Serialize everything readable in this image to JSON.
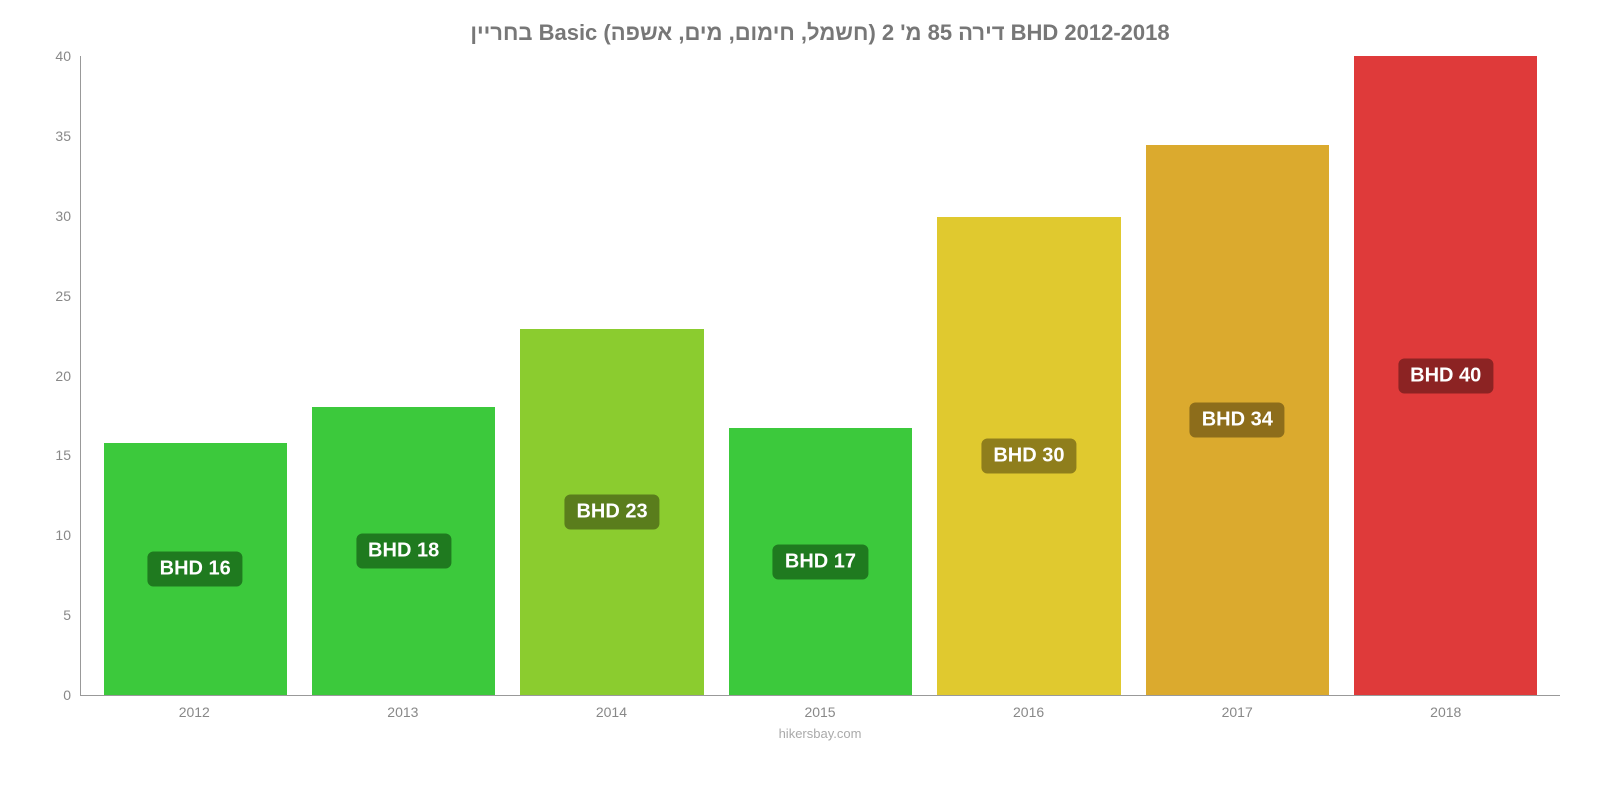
{
  "chart": {
    "type": "bar",
    "title": "בחריין Basic (חשמל, חימום, מים, אשפה) דירה 85 מ' 2 BHD 2012-2018",
    "title_fontsize": 22,
    "title_color": "#777777",
    "background_color": "#ffffff",
    "axis_color": "#999999",
    "tick_color": "#888888",
    "tick_fontsize": 14,
    "ylim": [
      0,
      40
    ],
    "yticks": [
      0,
      5,
      10,
      15,
      20,
      25,
      30,
      35,
      40
    ],
    "categories": [
      "2012",
      "2013",
      "2014",
      "2015",
      "2016",
      "2017",
      "2018"
    ],
    "values": [
      16,
      18,
      23,
      17,
      30,
      34,
      40
    ],
    "bar_heights_actual": [
      15.8,
      18.0,
      22.9,
      16.7,
      29.9,
      34.4,
      40.0
    ],
    "bar_labels": [
      "BHD 16",
      "BHD 18",
      "BHD 23",
      "BHD 17",
      "BHD 30",
      "BHD 34",
      "BHD 40"
    ],
    "bar_colors": [
      "#3cc93c",
      "#3cc93c",
      "#8bcc2f",
      "#3cc93c",
      "#e0c92f",
      "#dbaa2e",
      "#df3a3a"
    ],
    "bar_label_bg": [
      "#1f7a1f",
      "#1f7a1f",
      "#5a7d1c",
      "#1f7a1f",
      "#8f7e1c",
      "#8d6d1b",
      "#8c2323"
    ],
    "bar_label_color": "#ffffff",
    "bar_label_fontsize": 20,
    "bar_width": 0.88,
    "attribution": "hikersbay.com",
    "attribution_color": "#aaaaaa",
    "attribution_fontsize": 13
  }
}
